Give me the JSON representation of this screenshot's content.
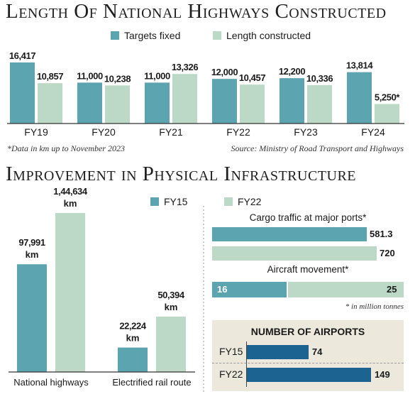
{
  "colors": {
    "target": "#5ba4b0",
    "constructed": "#bcd9c8",
    "dark": "#1c6391",
    "axis": "#333333"
  },
  "chart_data": [
    {
      "type": "bar",
      "title": "Length Of National Highways Constructed",
      "categories": [
        "FY19",
        "FY20",
        "FY21",
        "FY22",
        "FY23",
        "FY24"
      ],
      "series": [
        {
          "name": "Targets fixed",
          "values": [
            16417,
            11000,
            11000,
            12000,
            12200,
            13814
          ],
          "labels": [
            "16,417",
            "11,000",
            "11,000",
            "12,000",
            "12,200",
            "13,814"
          ]
        },
        {
          "name": "Length constructed",
          "values": [
            10857,
            10238,
            13326,
            10457,
            10336,
            5250
          ],
          "labels": [
            "10,857",
            "10,238",
            "13,326",
            "10,457",
            "10,336",
            "5,250*"
          ]
        }
      ],
      "ylim": [
        0,
        16417
      ],
      "footnote": "*Data in km up to November 2023",
      "source": "Source: Ministry of Road Transport and Highways"
    },
    {
      "type": "bar",
      "title": "Improvement in Physical Infrastructure",
      "categories": [
        "National highways",
        "Electrified rail route"
      ],
      "series": [
        {
          "name": "FY15",
          "values": [
            97991,
            22224
          ],
          "labels": [
            "97,991",
            "22,224"
          ]
        },
        {
          "name": "FY22",
          "values": [
            144634,
            50394
          ],
          "labels": [
            "1,44,634",
            "50,394"
          ]
        }
      ],
      "unit": "km",
      "ylim": [
        0,
        144634
      ]
    },
    {
      "type": "bar",
      "orientation": "horizontal",
      "groups": [
        {
          "title": "Cargo traffic at major ports*",
          "values": [
            581.3,
            720
          ],
          "labels": [
            "581.3",
            "720"
          ]
        },
        {
          "title": "Aircraft movement*",
          "values": [
            16,
            25
          ],
          "labels": [
            "16",
            "25"
          ],
          "stacked": true
        }
      ],
      "footnote": "* in million tonnes"
    },
    {
      "type": "bar",
      "orientation": "horizontal",
      "title": "NUMBER OF AIRPORTS",
      "categories": [
        "FY15",
        "FY22"
      ],
      "values": [
        74,
        149
      ],
      "labels": [
        "74",
        "149"
      ]
    }
  ]
}
